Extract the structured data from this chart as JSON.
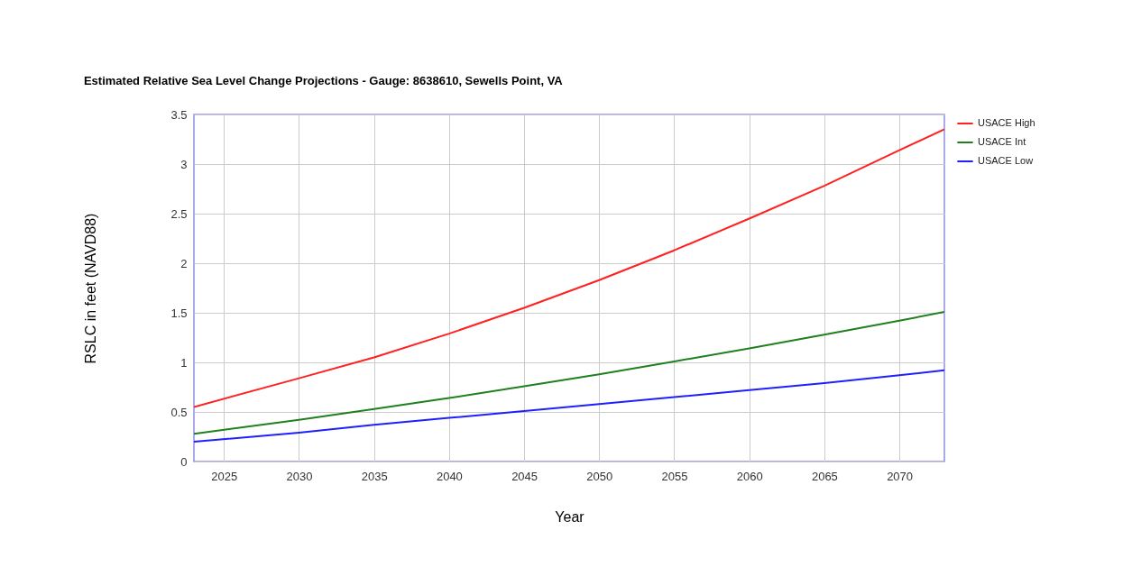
{
  "chart_data": {
    "type": "line",
    "title": "Estimated Relative Sea Level Change Projections - Gauge: 8638610, Sewells Point, VA",
    "xlabel": "Year",
    "ylabel": "RSLC in feet (NAVD88)",
    "x": [
      2023,
      2030,
      2035,
      2040,
      2045,
      2050,
      2055,
      2060,
      2065,
      2070,
      2073
    ],
    "series": [
      {
        "name": "USACE High",
        "color": "#ff2020",
        "values": [
          0.55,
          0.84,
          1.05,
          1.29,
          1.55,
          1.83,
          2.13,
          2.45,
          2.78,
          3.14,
          3.35
        ]
      },
      {
        "name": "USACE Int",
        "color": "#208020",
        "values": [
          0.28,
          0.42,
          0.53,
          0.64,
          0.76,
          0.88,
          1.01,
          1.14,
          1.28,
          1.42,
          1.51
        ]
      },
      {
        "name": "USACE Low",
        "color": "#2020ff",
        "values": [
          0.2,
          0.29,
          0.37,
          0.44,
          0.51,
          0.58,
          0.65,
          0.72,
          0.79,
          0.87,
          0.92
        ]
      }
    ],
    "xlim": [
      2023,
      2073
    ],
    "xticks": [
      2025,
      2030,
      2035,
      2040,
      2045,
      2050,
      2055,
      2060,
      2065,
      2070
    ],
    "ylim": [
      0,
      3.5
    ],
    "yticks": [
      0,
      0.5,
      1,
      1.5,
      2,
      2.5,
      3,
      3.5
    ],
    "grid": true,
    "legend": "top right"
  }
}
